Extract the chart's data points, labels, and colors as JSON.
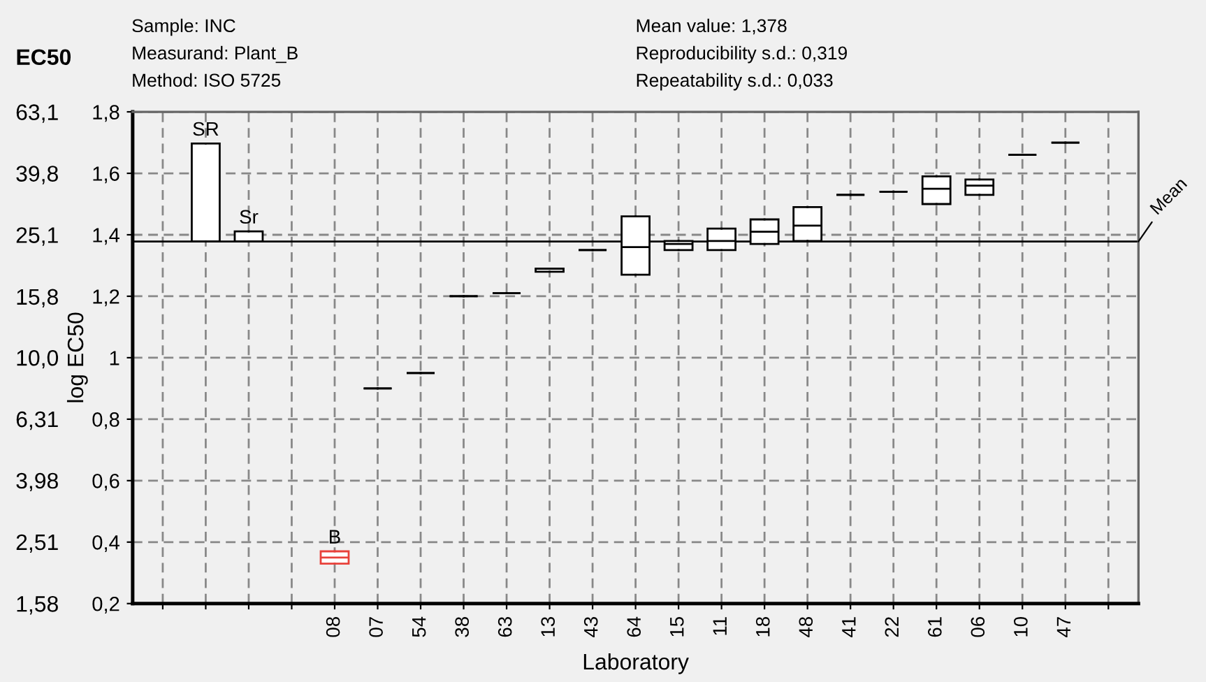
{
  "chart_data": {
    "type": "box",
    "annotations": [
      "Sample: INC",
      "Measurand: Plant_B",
      "Method: ISO 5725",
      "Mean value: 1,378",
      "Reproducibility s.d.: 0,319",
      "Repeatability s.d.: 0,033",
      {
        "text": "SR",
        "y": 1.697
      },
      {
        "text": "Sr",
        "y": 1.411
      },
      {
        "text": "B",
        "x": "08",
        "y": 0.37
      }
    ],
    "categories": [
      null,
      null,
      null,
      null,
      "08",
      "07",
      "54",
      "38",
      "63",
      "13",
      "43",
      "64",
      "15",
      "11",
      "18",
      "48",
      "41",
      "22",
      "61",
      "06",
      "10",
      "47",
      null
    ],
    "boxes": [
      null,
      {
        "low": 1.378,
        "q1": 1.378,
        "median": 1.378,
        "q3": 1.697,
        "high": 1.697
      },
      {
        "low": 1.378,
        "q1": 1.378,
        "median": 1.378,
        "q3": 1.411,
        "high": 1.411
      },
      null,
      {
        "low": 0.33,
        "q1": 0.33,
        "median": 0.35,
        "q3": 0.37,
        "high": 0.37
      },
      {
        "low": 0.9,
        "q1": 0.9,
        "median": 0.9,
        "q3": 0.9,
        "high": 0.9
      },
      {
        "low": 0.95,
        "q1": 0.95,
        "median": 0.95,
        "q3": 0.95,
        "high": 0.95
      },
      {
        "low": 1.2,
        "q1": 1.2,
        "median": 1.2,
        "q3": 1.2,
        "high": 1.2
      },
      {
        "low": 1.21,
        "q1": 1.21,
        "median": 1.21,
        "q3": 1.21,
        "high": 1.21
      },
      {
        "low": 1.28,
        "q1": 1.28,
        "median": 1.29,
        "q3": 1.29,
        "high": 1.29
      },
      {
        "low": 1.35,
        "q1": 1.35,
        "median": 1.35,
        "q3": 1.35,
        "high": 1.35
      },
      {
        "low": 1.27,
        "q1": 1.27,
        "median": 1.36,
        "q3": 1.46,
        "high": 1.46
      },
      {
        "low": 1.35,
        "q1": 1.35,
        "median": 1.37,
        "q3": 1.38,
        "high": 1.38
      },
      {
        "low": 1.35,
        "q1": 1.35,
        "median": 1.38,
        "q3": 1.42,
        "high": 1.42
      },
      {
        "low": 1.37,
        "q1": 1.37,
        "median": 1.41,
        "q3": 1.45,
        "high": 1.45
      },
      {
        "low": 1.38,
        "q1": 1.38,
        "median": 1.43,
        "q3": 1.49,
        "high": 1.49
      },
      {
        "low": 1.53,
        "q1": 1.53,
        "median": 1.53,
        "q3": 1.53,
        "high": 1.53
      },
      {
        "low": 1.54,
        "q1": 1.54,
        "median": 1.54,
        "q3": 1.54,
        "high": 1.54
      },
      {
        "low": 1.5,
        "q1": 1.5,
        "median": 1.55,
        "q3": 1.59,
        "high": 1.59
      },
      {
        "low": 1.53,
        "q1": 1.53,
        "median": 1.56,
        "q3": 1.58,
        "high": 1.58
      },
      {
        "low": 1.66,
        "q1": 1.66,
        "median": 1.66,
        "q3": 1.66,
        "high": 1.66
      },
      {
        "low": 1.7,
        "q1": 1.7,
        "median": 1.7,
        "q3": 1.7,
        "high": 1.7
      },
      null
    ],
    "colors": [
      null,
      "#000000",
      "#000000",
      null,
      "#e8413a",
      "#000000",
      "#000000",
      "#000000",
      "#000000",
      "#000000",
      "#000000",
      "#000000",
      "#000000",
      "#000000",
      "#000000",
      "#000000",
      "#000000",
      "#000000",
      "#000000",
      "#000000",
      "#000000",
      "#000000",
      null
    ],
    "xlabel": "Laboratory",
    "ylabel": "log EC50",
    "y2label": "EC50",
    "ylim": [
      0.2,
      1.8
    ],
    "yticks": [
      {
        "value": 0.2,
        "label": "0,2"
      },
      {
        "value": 0.4,
        "label": "0,4"
      },
      {
        "value": 0.6,
        "label": "0,6"
      },
      {
        "value": 0.8,
        "label": "0,8"
      },
      1,
      {
        "value": 1.2,
        "label": "1,2"
      },
      {
        "value": 1.4,
        "label": "1,4"
      },
      {
        "value": 1.6,
        "label": "1,6"
      },
      {
        "value": 1.8,
        "label": "1,8"
      }
    ],
    "y2lim": [
      1.58,
      63.1
    ],
    "y2ticks": [
      {
        "value": 1.58,
        "label": "1,58"
      },
      {
        "value": 2.51,
        "label": "2,51"
      },
      {
        "value": 3.98,
        "label": "3,98"
      },
      {
        "value": 6.31,
        "label": "6,31"
      },
      {
        "value": 10.0,
        "label": "10,0"
      },
      {
        "value": 15.8,
        "label": "15,8"
      },
      {
        "value": 25.1,
        "label": "25,1"
      },
      {
        "value": 39.8,
        "label": "39,8"
      },
      {
        "value": 63.1,
        "label": "63,1"
      }
    ],
    "log": "y2",
    "ref_lines": [
      {
        "axis": "y",
        "value": 1.378,
        "label": "Mean",
        "color": "#000000"
      }
    ],
    "grid": true
  }
}
